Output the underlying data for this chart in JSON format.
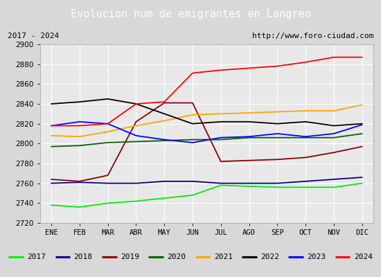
{
  "title": "Evolucion num de emigrantes en Langreo",
  "title_bg": "#4d8fcc",
  "subtitle_left": "2017 - 2024",
  "subtitle_right": "http://www.foro-ciudad.com",
  "months": [
    "ENE",
    "FEB",
    "MAR",
    "ABR",
    "MAY",
    "JUN",
    "JUL",
    "AGO",
    "SEP",
    "OCT",
    "NOV",
    "DIC"
  ],
  "ylim": [
    2720,
    2900
  ],
  "yticks": [
    2720,
    2740,
    2760,
    2780,
    2800,
    2820,
    2840,
    2860,
    2880,
    2900
  ],
  "series": {
    "2017": {
      "color": "#00ee00",
      "data": [
        2738,
        2736,
        2740,
        2742,
        2745,
        2748,
        2758,
        2757,
        2756,
        2756,
        2756,
        2760
      ]
    },
    "2018": {
      "color": "#00008b",
      "data": [
        2760,
        2761,
        2760,
        2760,
        2762,
        2762,
        2760,
        2760,
        2760,
        2762,
        2764,
        2766
      ]
    },
    "2019": {
      "color": "#8b0000",
      "data": [
        2764,
        2762,
        2768,
        2822,
        2841,
        2841,
        2782,
        2783,
        2784,
        2786,
        2791,
        2797
      ]
    },
    "2020": {
      "color": "#006400",
      "data": [
        2797,
        2798,
        2801,
        2802,
        2803,
        2804,
        2804,
        2806,
        2806,
        2806,
        2806,
        2810
      ]
    },
    "2021": {
      "color": "#ffa500",
      "data": [
        2808,
        2807,
        2812,
        2818,
        2823,
        2829,
        2830,
        2831,
        2832,
        2833,
        2833,
        2839
      ]
    },
    "2022": {
      "color": "#000000",
      "data": [
        2840,
        2842,
        2845,
        2840,
        2830,
        2820,
        2822,
        2822,
        2820,
        2822,
        2818,
        2820
      ]
    },
    "2023": {
      "color": "#0000ff",
      "data": [
        2818,
        2822,
        2820,
        2808,
        2804,
        2801,
        2806,
        2807,
        2810,
        2807,
        2810,
        2819
      ]
    },
    "2024": {
      "color": "#ff0000",
      "data": [
        2818,
        2818,
        2820,
        2840,
        2842,
        2871,
        2874,
        2876,
        2878,
        2882,
        2887,
        2887
      ]
    }
  },
  "legend_order": [
    "2017",
    "2018",
    "2019",
    "2020",
    "2021",
    "2022",
    "2023",
    "2024"
  ],
  "bg_color": "#d8d8d8",
  "plot_bg": "#e8e8e8",
  "grid_color": "#ffffff",
  "fig_width": 5.5,
  "fig_height": 4.0,
  "dpi": 100
}
